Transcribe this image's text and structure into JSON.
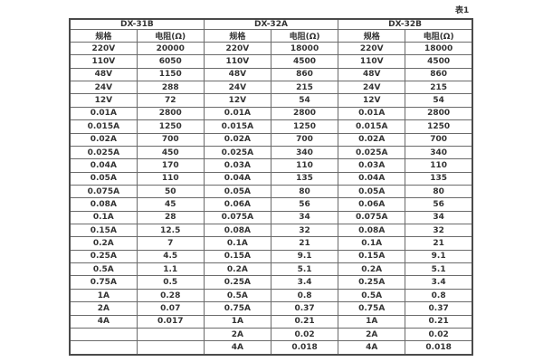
{
  "caption": "表1",
  "table": {
    "groups": [
      {
        "name": "DX-31B",
        "columns": [
          "规格",
          "电阻(Ω)"
        ],
        "rows": [
          [
            "220V",
            "20000"
          ],
          [
            "110V",
            "6050"
          ],
          [
            "48V",
            "1150"
          ],
          [
            "24V",
            "288"
          ],
          [
            "12V",
            "72"
          ],
          [
            "0.01A",
            "2800"
          ],
          [
            "0.015A",
            "1250"
          ],
          [
            "0.02A",
            "700"
          ],
          [
            "0.025A",
            "450"
          ],
          [
            "0.04A",
            "170"
          ],
          [
            "0.05A",
            "110"
          ],
          [
            "0.075A",
            "50"
          ],
          [
            "0.08A",
            "45"
          ],
          [
            "0.1A",
            "28"
          ],
          [
            "0.15A",
            "12.5"
          ],
          [
            "0.2A",
            "7"
          ],
          [
            "0.25A",
            "4.5"
          ],
          [
            "0.5A",
            "1.1"
          ],
          [
            "0.75A",
            "0.5"
          ],
          [
            "1A",
            "0.28"
          ],
          [
            "2A",
            "0.07"
          ],
          [
            "4A",
            "0.017"
          ],
          [
            "",
            ""
          ],
          [
            "",
            ""
          ]
        ]
      },
      {
        "name": "DX-32A",
        "columns": [
          "规格",
          "电阻(Ω)"
        ],
        "rows": [
          [
            "220V",
            "18000"
          ],
          [
            "110V",
            "4500"
          ],
          [
            "48V",
            "860"
          ],
          [
            "24V",
            "215"
          ],
          [
            "12V",
            "54"
          ],
          [
            "0.01A",
            "2800"
          ],
          [
            "0.015A",
            "1250"
          ],
          [
            "0.02A",
            "700"
          ],
          [
            "0.025A",
            "340"
          ],
          [
            "0.03A",
            "110"
          ],
          [
            "0.04A",
            "135"
          ],
          [
            "0.05A",
            "80"
          ],
          [
            "0.06A",
            "56"
          ],
          [
            "0.075A",
            "34"
          ],
          [
            "0.08A",
            "32"
          ],
          [
            "0.1A",
            "21"
          ],
          [
            "0.15A",
            "9.1"
          ],
          [
            "0.2A",
            "5.1"
          ],
          [
            "0.25A",
            "3.4"
          ],
          [
            "0.5A",
            "0.8"
          ],
          [
            "0.75A",
            "0.37"
          ],
          [
            "1A",
            "0.21"
          ],
          [
            "2A",
            "0.02"
          ],
          [
            "4A",
            "0.018"
          ]
        ]
      },
      {
        "name": "DX-32B",
        "columns": [
          "规格",
          "电阻(Ω)"
        ],
        "rows": [
          [
            "220V",
            "18000"
          ],
          [
            "110V",
            "4500"
          ],
          [
            "48V",
            "860"
          ],
          [
            "24V",
            "215"
          ],
          [
            "12V",
            "54"
          ],
          [
            "0.01A",
            "2800"
          ],
          [
            "0.015A",
            "1250"
          ],
          [
            "0.02A",
            "700"
          ],
          [
            "0.025A",
            "340"
          ],
          [
            "0.03A",
            "110"
          ],
          [
            "0.04A",
            "135"
          ],
          [
            "0.05A",
            "80"
          ],
          [
            "0.06A",
            "56"
          ],
          [
            "0.075A",
            "34"
          ],
          [
            "0.08A",
            "32"
          ],
          [
            "0.1A",
            "21"
          ],
          [
            "0.15A",
            "9.1"
          ],
          [
            "0.2A",
            "5.1"
          ],
          [
            "0.25A",
            "3.4"
          ],
          [
            "0.5A",
            "0.8"
          ],
          [
            "0.75A",
            "0.37"
          ],
          [
            "1A",
            "0.21"
          ],
          [
            "2A",
            "0.02"
          ],
          [
            "4A",
            "0.018"
          ]
        ]
      }
    ]
  }
}
